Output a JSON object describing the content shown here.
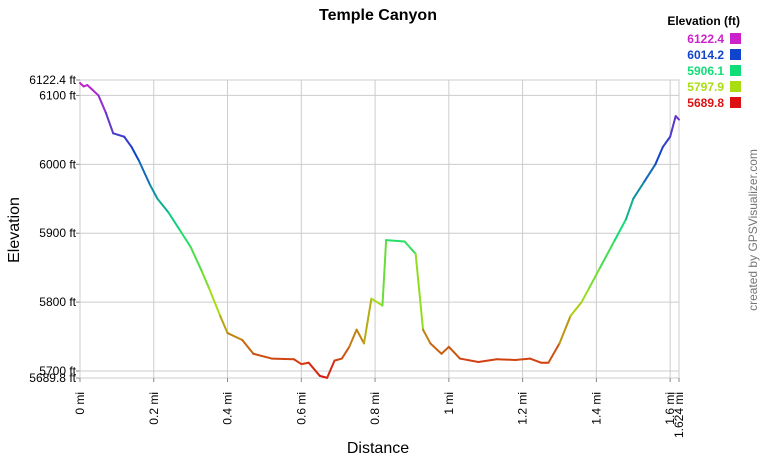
{
  "chart_data": {
    "type": "line",
    "title": "Temple Canyon",
    "xlabel": "Distance",
    "ylabel": "Elevation",
    "credit": "created by GPSVisualizer.com",
    "legend_title": "Elevation (ft)",
    "color_scale": [
      {
        "value": 6122.4,
        "color": "#cc22cc"
      },
      {
        "value": 6014.2,
        "color": "#1144cc"
      },
      {
        "value": 5906.1,
        "color": "#11dd77"
      },
      {
        "value": 5797.9,
        "color": "#aadd11"
      },
      {
        "value": 5689.8,
        "color": "#dd1111"
      }
    ],
    "x": [
      0,
      0.01,
      0.02,
      0.03,
      0.05,
      0.07,
      0.09,
      0.12,
      0.14,
      0.16,
      0.19,
      0.21,
      0.24,
      0.27,
      0.3,
      0.33,
      0.35,
      0.38,
      0.4,
      0.44,
      0.47,
      0.52,
      0.58,
      0.6,
      0.62,
      0.65,
      0.67,
      0.69,
      0.71,
      0.73,
      0.75,
      0.77,
      0.79,
      0.82,
      0.83,
      0.88,
      0.91,
      0.93,
      0.95,
      0.98,
      1.0,
      1.03,
      1.08,
      1.13,
      1.18,
      1.22,
      1.25,
      1.27,
      1.3,
      1.33,
      1.36,
      1.38,
      1.41,
      1.45,
      1.48,
      1.5,
      1.53,
      1.56,
      1.58,
      1.6,
      1.615,
      1.624
    ],
    "series": [
      {
        "name": "Elevation",
        "values": [
          6118,
          6113,
          6115,
          6110,
          6100,
          6075,
          6045,
          6040,
          6025,
          6005,
          5970,
          5950,
          5930,
          5905,
          5880,
          5845,
          5820,
          5780,
          5755,
          5745,
          5725,
          5718,
          5717,
          5710,
          5712,
          5693,
          5690,
          5715,
          5718,
          5735,
          5760,
          5740,
          5805,
          5795,
          5890,
          5888,
          5870,
          5760,
          5740,
          5725,
          5735,
          5718,
          5713,
          5717,
          5716,
          5718,
          5712,
          5712,
          5740,
          5780,
          5800,
          5820,
          5850,
          5890,
          5920,
          5950,
          5975,
          6000,
          6025,
          6040,
          6070,
          6065
        ]
      }
    ],
    "xlim": [
      0,
      1.624
    ],
    "ylim": [
      5689.8,
      6122.4
    ],
    "xticks": [
      {
        "value": 0,
        "label": "0 mi"
      },
      {
        "value": 0.2,
        "label": "0.2 mi"
      },
      {
        "value": 0.4,
        "label": "0.4 mi"
      },
      {
        "value": 0.6,
        "label": "0.6 mi"
      },
      {
        "value": 0.8,
        "label": "0.8 mi"
      },
      {
        "value": 1,
        "label": "1 mi"
      },
      {
        "value": 1.2,
        "label": "1.2 mi"
      },
      {
        "value": 1.4,
        "label": "1.4 mi"
      },
      {
        "value": 1.6,
        "label": "1.6 mi"
      },
      {
        "value": 1.624,
        "label": "1.624 mi"
      }
    ],
    "yticks": [
      {
        "value": 5689.8,
        "label": "5689.8 ft"
      },
      {
        "value": 5700,
        "label": "5700 ft"
      },
      {
        "value": 5800,
        "label": "5800 ft"
      },
      {
        "value": 5900,
        "label": "5900 ft"
      },
      {
        "value": 6000,
        "label": "6000 ft"
      },
      {
        "value": 6100,
        "label": "6100 ft"
      },
      {
        "value": 6122.4,
        "label": "6122.4 ft"
      }
    ],
    "grid": true
  }
}
